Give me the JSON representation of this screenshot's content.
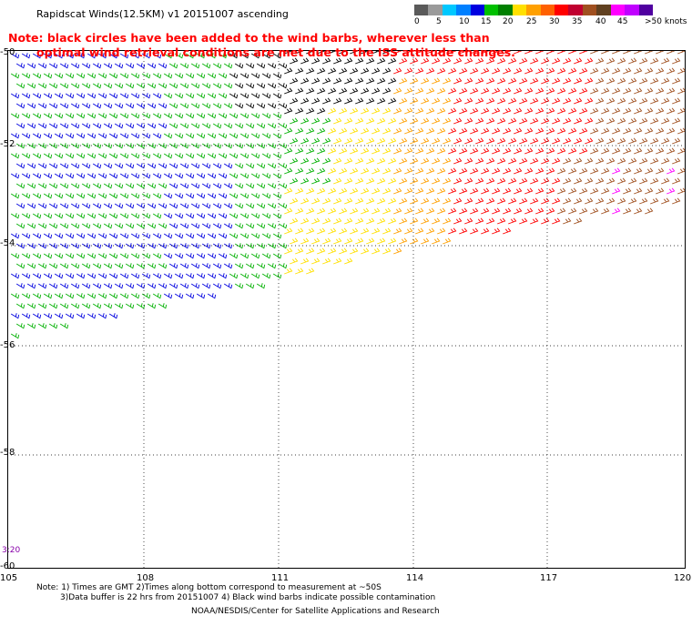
{
  "header": {
    "title": "Rapidscat Winds(12.5KM) v1 20151007 ascending",
    "note_line_1": "Note: black circles have been added to the wind barbs, wherever less than",
    "note_line_2": "optimal wind retrieval conditions are met due to the ISS attitude changes."
  },
  "legend": {
    "colors": [
      "#5a5a5a",
      "#9a9a9a",
      "#00c8ff",
      "#0080ff",
      "#0000e0",
      "#00c000",
      "#008000",
      "#ffe000",
      "#ffa000",
      "#ff6000",
      "#ff0000",
      "#c00030",
      "#a05020",
      "#604020",
      "#ff00ff",
      "#c000ff",
      "#5000a0"
    ],
    "labels": [
      "0",
      "5",
      "10",
      "15",
      "20",
      "25",
      "30",
      "35",
      "40",
      "45",
      ">50 knots"
    ]
  },
  "map": {
    "lat_labels": [
      "-50",
      "-52",
      "-54",
      "-56",
      "-58",
      "-60"
    ],
    "lon_labels": [
      "105",
      "108",
      "111",
      "114",
      "117",
      "120"
    ],
    "time_label": "3:20",
    "barb_colors": {
      "blue": "#0000e0",
      "green": "#00b000",
      "dark_green": "#006000",
      "yellow": "#ffe000",
      "orange": "#ffa000",
      "red": "#ff0000",
      "brown": "#a05020",
      "magenta": "#ff00ff",
      "black": "#000000"
    }
  },
  "footer": {
    "note_1": "Note: 1) Times are GMT 2)Times along bottom correspond to measurement at ~50S",
    "note_2": "3)Data buffer is 22 hrs from 20151007 4) Black wind barbs indicate possible contamination",
    "credit": "NOAA/NESDIS/Center for Satellite Applications and Research"
  }
}
